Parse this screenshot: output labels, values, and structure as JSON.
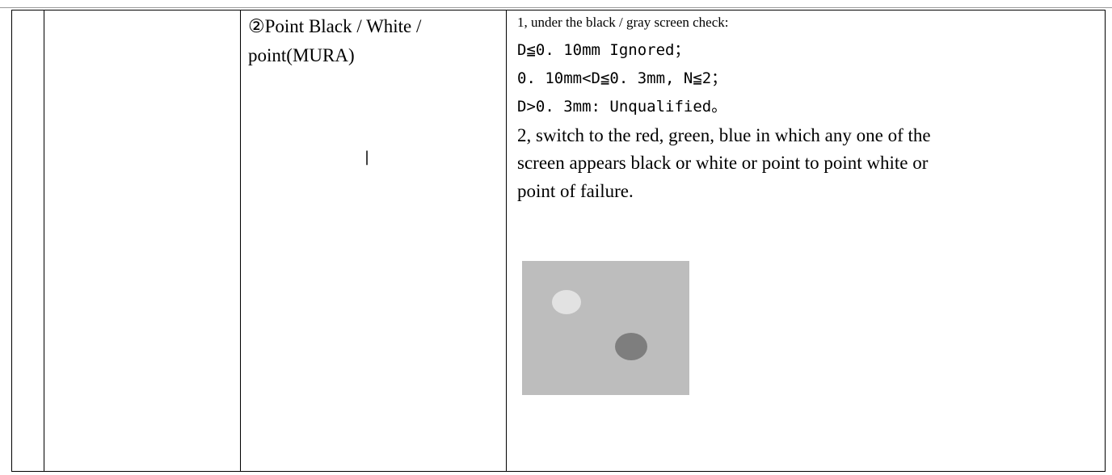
{
  "table": {
    "rows": [
      [
        "",
        "",
        [
          "②Point Black / White /",
          "point(MURA)"
        ],
        [
          "1, under the black / gray screen check:",
          "D≦0. 10mm Ignored；",
          "0. 10mm<D≦0. 3mm, N≦2；",
          "D>0. 3mm: Unqualified。",
          "2, switch to the red, green, blue in which any one of the",
          "screen appears black or white or point to point white or",
          "point of failure."
        ]
      ]
    ],
    "stray_mark": "|"
  }
}
